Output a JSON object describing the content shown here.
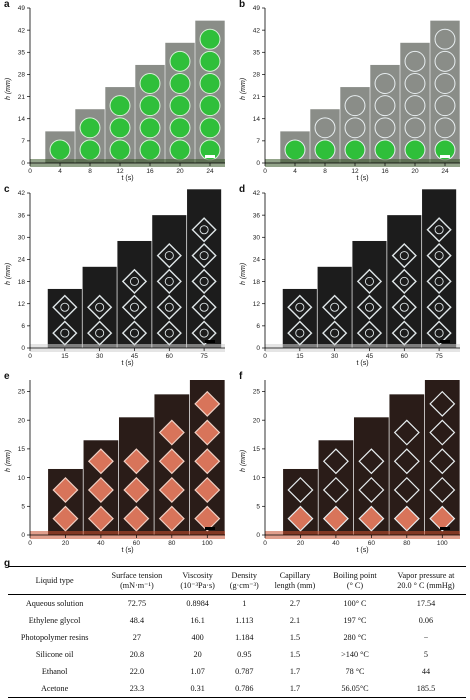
{
  "panels": [
    {
      "letter": "a",
      "ylabel": "h (mm)",
      "xlabel": "t (s)",
      "yticks": [
        "0",
        "7",
        "14",
        "21",
        "28",
        "35",
        "42",
        "49"
      ],
      "xticks": [
        "0",
        "4",
        "8",
        "12",
        "16",
        "20",
        "24"
      ],
      "chart_data": {
        "type": "bar",
        "x": [
          4,
          8,
          12,
          16,
          20,
          24
        ],
        "values": [
          10,
          17,
          24,
          31,
          38,
          45
        ],
        "ylim": [
          0,
          49
        ],
        "xlim": [
          0,
          26
        ],
        "xlabel": "t (s)",
        "ylabel": "h (mm)"
      }
    },
    {
      "letter": "b",
      "ylabel": "h (mm)",
      "xlabel": "t (s)",
      "yticks": [
        "0",
        "7",
        "14",
        "21",
        "28",
        "35",
        "42",
        "49"
      ],
      "xticks": [
        "0",
        "4",
        "8",
        "12",
        "16",
        "20",
        "24"
      ],
      "chart_data": {
        "type": "bar",
        "x": [
          4,
          8,
          12,
          16,
          20,
          24
        ],
        "values": [
          10,
          17,
          24,
          31,
          38,
          45
        ],
        "ylim": [
          0,
          49
        ],
        "xlim": [
          0,
          26
        ],
        "xlabel": "t (s)",
        "ylabel": "h (mm)"
      }
    },
    {
      "letter": "c",
      "ylabel": "h (mm)",
      "xlabel": "t (s)",
      "yticks": [
        "0",
        "6",
        "12",
        "18",
        "24",
        "30",
        "36",
        "42"
      ],
      "xticks": [
        "0",
        "15",
        "30",
        "45",
        "60",
        "75"
      ],
      "chart_data": {
        "type": "bar",
        "x": [
          15,
          30,
          45,
          60,
          75
        ],
        "values": [
          16,
          22,
          29,
          36,
          43
        ],
        "ylim": [
          0,
          42
        ],
        "xlim": [
          0,
          84
        ],
        "xlabel": "t (s)",
        "ylabel": "h (mm)"
      }
    },
    {
      "letter": "d",
      "ylabel": "h (mm)",
      "xlabel": "t (s)",
      "yticks": [
        "0",
        "6",
        "12",
        "18",
        "24",
        "30",
        "36",
        "42"
      ],
      "xticks": [
        "0",
        "15",
        "30",
        "45",
        "60",
        "75"
      ],
      "chart_data": {
        "type": "bar",
        "x": [
          15,
          30,
          45,
          60,
          75
        ],
        "values": [
          16,
          22,
          29,
          36,
          43
        ],
        "ylim": [
          0,
          42
        ],
        "xlim": [
          0,
          84
        ],
        "xlabel": "t (s)",
        "ylabel": "h (mm)"
      }
    },
    {
      "letter": "e",
      "ylabel": "h (mm)",
      "xlabel": "t (s)",
      "yticks": [
        "0",
        "5",
        "10",
        "15",
        "20",
        "25"
      ],
      "xticks": [
        "0",
        "20",
        "40",
        "60",
        "80",
        "100"
      ],
      "chart_data": {
        "type": "bar",
        "x": [
          20,
          40,
          60,
          80,
          100
        ],
        "values": [
          11.5,
          16.5,
          20.5,
          24.5,
          27
        ],
        "ylim": [
          0,
          27
        ],
        "xlim": [
          0,
          110
        ],
        "xlabel": "t (s)",
        "ylabel": "h (mm)"
      }
    },
    {
      "letter": "f",
      "ylabel": "h (mm)",
      "xlabel": "t (s)",
      "yticks": [
        "0",
        "5",
        "10",
        "15",
        "20",
        "25"
      ],
      "xticks": [
        "0",
        "20",
        "40",
        "60",
        "80",
        "100"
      ],
      "chart_data": {
        "type": "bar",
        "x": [
          20,
          40,
          60,
          80,
          100
        ],
        "values": [
          11.5,
          16.5,
          20.5,
          24.5,
          27
        ],
        "ylim": [
          0,
          27
        ],
        "xlim": [
          0,
          110
        ],
        "xlabel": "t (s)",
        "ylabel": "h (mm)"
      }
    }
  ],
  "table": {
    "letter": "g",
    "headers": [
      [
        "Liquid type",
        ""
      ],
      [
        "Surface tension",
        "(mN·m⁻¹)"
      ],
      [
        "Viscosity",
        "(10⁻³Pa·s)"
      ],
      [
        "Density",
        "(g·cm⁻³)"
      ],
      [
        "Capillary",
        "length (mm)"
      ],
      [
        "Boiling point",
        "(° C)"
      ],
      [
        "Vapor pressure at",
        "20.0 ° C (mmHg)"
      ]
    ],
    "rows": [
      [
        "Aqueous solution",
        "72.75",
        "0.8984",
        "1",
        "2.7",
        "100° C",
        "17.54"
      ],
      [
        "Ethylene glycol",
        "48.4",
        "16.1",
        "1.113",
        "2.1",
        "197 °C",
        "0.06"
      ],
      [
        "Photopolymer resins",
        "27",
        "400",
        "1.184",
        "1.5",
        "280 °C",
        "−"
      ],
      [
        "Silicone oil",
        "20.8",
        "20",
        "0.95",
        "1.5",
        ">140 °C",
        "5"
      ],
      [
        "Ethanol",
        "22.0",
        "1.07",
        "0.787",
        "1.7",
        "78 °C",
        "44"
      ],
      [
        "Acetone",
        "23.3",
        "0.31",
        "0.786",
        "1.7",
        "56.05°C",
        "185.5"
      ]
    ]
  },
  "colors": {
    "green_liquid": "#2fbf3a",
    "orange_liquid": "#d8745a",
    "dark_bg": "#2a1c18",
    "glass": "#dfe6e8"
  }
}
